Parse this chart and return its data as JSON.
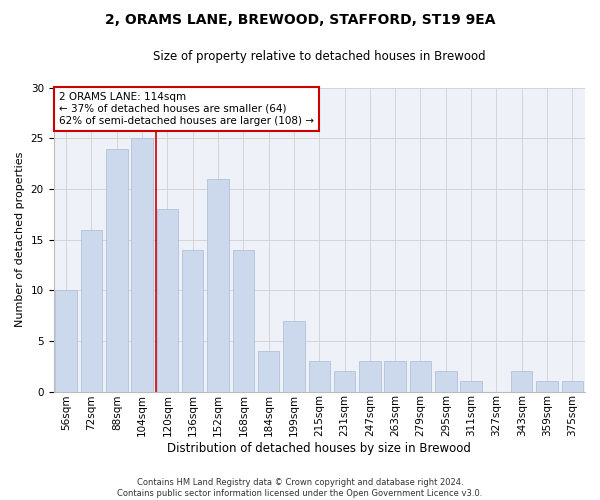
{
  "title": "2, ORAMS LANE, BREWOOD, STAFFORD, ST19 9EA",
  "subtitle": "Size of property relative to detached houses in Brewood",
  "xlabel": "Distribution of detached houses by size in Brewood",
  "ylabel": "Number of detached properties",
  "categories": [
    "56sqm",
    "72sqm",
    "88sqm",
    "104sqm",
    "120sqm",
    "136sqm",
    "152sqm",
    "168sqm",
    "184sqm",
    "199sqm",
    "215sqm",
    "231sqm",
    "247sqm",
    "263sqm",
    "279sqm",
    "295sqm",
    "311sqm",
    "327sqm",
    "343sqm",
    "359sqm",
    "375sqm"
  ],
  "values": [
    10,
    16,
    24,
    25,
    18,
    14,
    21,
    14,
    4,
    7,
    3,
    2,
    3,
    3,
    3,
    2,
    1,
    0,
    2,
    1,
    1
  ],
  "bar_color": "#ccd9ed",
  "bar_edgecolor": "#aabbd6",
  "grid_color": "#d0d0d0",
  "background_color": "#eef2f8",
  "red_line_x": 3.55,
  "red_line_color": "#cc0000",
  "annotation_text": "2 ORAMS LANE: 114sqm\n← 37% of detached houses are smaller (64)\n62% of semi-detached houses are larger (108) →",
  "annotation_box_color": "#ffffff",
  "annotation_box_edgecolor": "#cc0000",
  "footer": "Contains HM Land Registry data © Crown copyright and database right 2024.\nContains public sector information licensed under the Open Government Licence v3.0.",
  "ylim": [
    0,
    30
  ],
  "yticks": [
    0,
    5,
    10,
    15,
    20,
    25,
    30
  ],
  "title_fontsize": 10,
  "subtitle_fontsize": 8.5,
  "xlabel_fontsize": 8.5,
  "ylabel_fontsize": 8,
  "tick_fontsize": 7.5,
  "annot_fontsize": 7.5,
  "footer_fontsize": 6
}
